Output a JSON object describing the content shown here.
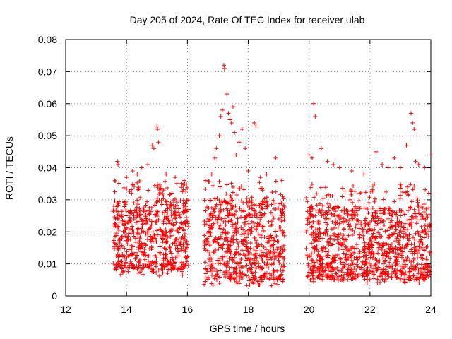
{
  "chart_data": {
    "type": "scatter",
    "title": "Day 205 of 2024, Rate Of TEC Index for receiver ulab",
    "xlabel": "GPS time / hours",
    "ylabel": "ROTI / TECUs",
    "xlim": [
      12,
      24
    ],
    "ylim": [
      0,
      0.08
    ],
    "xticks": [
      "12",
      "14",
      "16",
      "18",
      "20",
      "22",
      "24"
    ],
    "yticks": [
      "0",
      "0.01",
      "0.02",
      "0.03",
      "0.04",
      "0.05",
      "0.06",
      "0.07",
      "0.08"
    ],
    "grid": true,
    "marker": "+",
    "color": "#ff0000",
    "series": [
      {
        "name": "ROTI",
        "segments": [
          {
            "x_start": 13.55,
            "x_end": 16.05,
            "y_low": 0.006,
            "y_typ_low": 0.008,
            "y_typ_high": 0.03,
            "y_high": 0.036
          },
          {
            "x_start": 16.55,
            "x_end": 19.2,
            "y_low": 0.003,
            "y_typ_low": 0.005,
            "y_typ_high": 0.03,
            "y_high": 0.036
          },
          {
            "x_start": 19.9,
            "x_end": 24.0,
            "y_low": 0.004,
            "y_typ_low": 0.005,
            "y_typ_high": 0.028,
            "y_high": 0.035
          }
        ],
        "highlights": [
          [
            13.7,
            0.042
          ],
          [
            13.72,
            0.041
          ],
          [
            14.0,
            0.037
          ],
          [
            14.2,
            0.039
          ],
          [
            14.35,
            0.038
          ],
          [
            14.5,
            0.04
          ],
          [
            14.7,
            0.041
          ],
          [
            14.85,
            0.047
          ],
          [
            14.9,
            0.046
          ],
          [
            15.0,
            0.053
          ],
          [
            15.02,
            0.052
          ],
          [
            15.05,
            0.048
          ],
          [
            15.3,
            0.038
          ],
          [
            15.6,
            0.037
          ],
          [
            15.9,
            0.036
          ],
          [
            16.6,
            0.036
          ],
          [
            16.8,
            0.038
          ],
          [
            16.9,
            0.043
          ],
          [
            16.95,
            0.046
          ],
          [
            17.05,
            0.05
          ],
          [
            17.1,
            0.056
          ],
          [
            17.15,
            0.058
          ],
          [
            17.2,
            0.072
          ],
          [
            17.22,
            0.071
          ],
          [
            17.3,
            0.063
          ],
          [
            17.35,
            0.057
          ],
          [
            17.4,
            0.055
          ],
          [
            17.45,
            0.054
          ],
          [
            17.5,
            0.059
          ],
          [
            17.55,
            0.051
          ],
          [
            17.6,
            0.044
          ],
          [
            17.7,
            0.048
          ],
          [
            17.8,
            0.052
          ],
          [
            17.9,
            0.046
          ],
          [
            18.0,
            0.039
          ],
          [
            18.2,
            0.054
          ],
          [
            18.25,
            0.053
          ],
          [
            18.4,
            0.037
          ],
          [
            18.6,
            0.038
          ],
          [
            18.9,
            0.043
          ],
          [
            19.1,
            0.036
          ],
          [
            20.0,
            0.044
          ],
          [
            20.1,
            0.043
          ],
          [
            20.15,
            0.06
          ],
          [
            20.2,
            0.056
          ],
          [
            20.4,
            0.046
          ],
          [
            20.6,
            0.042
          ],
          [
            20.8,
            0.041
          ],
          [
            21.0,
            0.04
          ],
          [
            21.4,
            0.039
          ],
          [
            21.8,
            0.038
          ],
          [
            22.2,
            0.045
          ],
          [
            22.4,
            0.041
          ],
          [
            22.6,
            0.04
          ],
          [
            22.8,
            0.043
          ],
          [
            23.0,
            0.04
          ],
          [
            23.2,
            0.047
          ],
          [
            23.35,
            0.057
          ],
          [
            23.4,
            0.054
          ],
          [
            23.45,
            0.052
          ],
          [
            23.5,
            0.042
          ],
          [
            23.6,
            0.041
          ],
          [
            23.8,
            0.04
          ],
          [
            24.0,
            0.044
          ]
        ]
      }
    ]
  }
}
